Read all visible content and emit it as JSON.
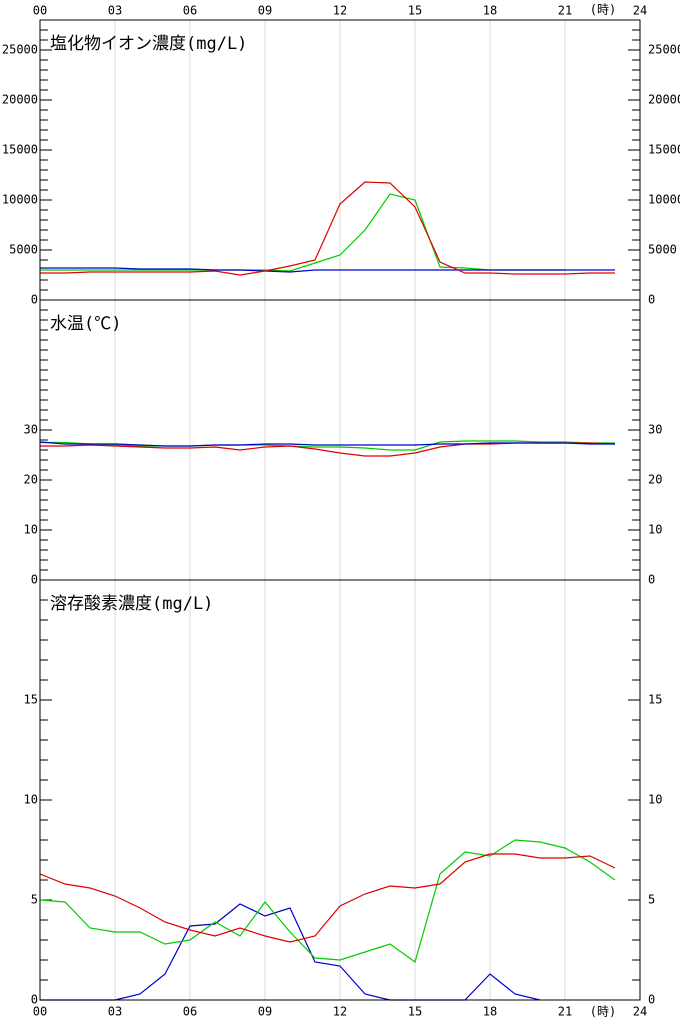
{
  "chart_data": [
    {
      "type": "line",
      "title": "塩化物イオン濃度(mg/L)",
      "xlabel": "(時)",
      "x_axis_position": "top",
      "x": [
        0,
        1,
        2,
        3,
        4,
        5,
        6,
        7,
        8,
        9,
        10,
        11,
        12,
        13,
        14,
        15,
        16,
        17,
        18,
        19,
        20,
        21,
        22,
        23
      ],
      "xlim": [
        0,
        24
      ],
      "xticks": [
        {
          "value": 0,
          "label": "00"
        },
        {
          "value": 3,
          "label": "03"
        },
        {
          "value": 6,
          "label": "06"
        },
        {
          "value": 9,
          "label": "09"
        },
        12,
        15,
        18,
        21,
        24
      ],
      "ylim": [
        0,
        28000
      ],
      "yticks": [
        0,
        5000,
        10000,
        15000,
        20000,
        25000
      ],
      "minor_yticks": [
        1000,
        2000,
        3000,
        4000,
        6000,
        7000,
        8000,
        9000,
        11000,
        12000,
        13000,
        14000,
        16000,
        17000,
        18000,
        19000,
        21000,
        22000,
        23000,
        24000,
        26000,
        27000
      ],
      "grid": true,
      "series": [
        {
          "color": "#00cc00",
          "values": [
            3000,
            3000,
            3000,
            3000,
            3000,
            3000,
            3000,
            3000,
            3000,
            3000,
            2900,
            3700,
            4500,
            7000,
            10600,
            10000,
            3300,
            3200,
            3000,
            3000,
            3000,
            3000,
            null,
            null
          ]
        },
        {
          "color": "#0000cc",
          "values": [
            3200,
            3200,
            3200,
            3200,
            3100,
            3100,
            3100,
            3000,
            3000,
            2900,
            2800,
            3000,
            3000,
            3000,
            3000,
            3000,
            3000,
            3000,
            3000,
            3000,
            3000,
            3000,
            3000,
            3000
          ]
        },
        {
          "color": "#e00000",
          "values": [
            2700,
            2700,
            2800,
            2800,
            2800,
            2800,
            2800,
            2900,
            2500,
            2900,
            3400,
            4000,
            9600,
            11800,
            11700,
            9300,
            3800,
            2700,
            2700,
            2600,
            2600,
            2600,
            2700,
            2700
          ]
        }
      ]
    },
    {
      "type": "line",
      "title": "水温(℃)",
      "x": [
        0,
        1,
        2,
        3,
        4,
        5,
        6,
        7,
        8,
        9,
        10,
        11,
        12,
        13,
        14,
        15,
        16,
        17,
        18,
        19,
        20,
        21,
        22,
        23
      ],
      "xlim": [
        0,
        24
      ],
      "xticks": [
        0,
        3,
        6,
        9,
        12,
        15,
        18,
        21,
        24
      ],
      "ylim": [
        0,
        56
      ],
      "yticks": [
        0,
        10,
        20,
        30
      ],
      "minor_yticks": [
        2,
        4,
        6,
        8,
        12,
        14,
        16,
        18,
        22,
        24,
        26,
        28,
        32,
        34,
        36,
        38,
        40,
        42,
        44,
        46,
        48,
        50,
        52,
        54
      ],
      "grid": true,
      "series": [
        {
          "color": "#00cc00",
          "values": [
            27.5,
            27.5,
            27.2,
            27,
            26.8,
            26.8,
            26.8,
            27,
            27,
            27,
            26.8,
            26.6,
            26.6,
            26.4,
            26,
            26,
            27.6,
            27.8,
            27.8,
            27.8,
            27.6,
            27.6,
            27.4,
            27.4
          ]
        },
        {
          "color": "#e00000",
          "values": [
            26.8,
            26.8,
            27,
            26.8,
            26.6,
            26.4,
            26.4,
            26.6,
            26,
            26.6,
            26.8,
            26.2,
            25.4,
            24.8,
            24.8,
            25.4,
            26.6,
            27.2,
            27.2,
            27.4,
            27.4,
            27.4,
            27.4,
            27.2
          ]
        },
        {
          "color": "#0000cc",
          "values": [
            27.6,
            27.2,
            27.2,
            27.2,
            27,
            26.8,
            26.8,
            27,
            27,
            27.2,
            27.2,
            27,
            27,
            27,
            27,
            27,
            27.2,
            27.2,
            27.4,
            27.4,
            27.4,
            27.4,
            27.2,
            27.2
          ]
        }
      ]
    },
    {
      "type": "line",
      "title": "溶存酸素濃度(mg/L)",
      "xlabel": "(時)",
      "x_axis_position": "bottom",
      "x": [
        0,
        1,
        2,
        3,
        4,
        5,
        6,
        7,
        8,
        9,
        10,
        11,
        12,
        13,
        14,
        15,
        16,
        17,
        18,
        19,
        20,
        21,
        22,
        23
      ],
      "xlim": [
        0,
        24
      ],
      "xticks": [
        {
          "value": 0,
          "label": "00"
        },
        {
          "value": 3,
          "label": "03"
        },
        {
          "value": 6,
          "label": "06"
        },
        {
          "value": 9,
          "label": "09"
        },
        12,
        15,
        18,
        21,
        24
      ],
      "ylim": [
        0,
        21
      ],
      "yticks": [
        0,
        5,
        10,
        15
      ],
      "minor_yticks": [
        1,
        2,
        3,
        4,
        6,
        7,
        8,
        9,
        11,
        12,
        13,
        14,
        16,
        17,
        18,
        19,
        20
      ],
      "grid": true,
      "series": [
        {
          "color": "#0000cc",
          "values": [
            0,
            0,
            0,
            0,
            0.3,
            1.3,
            3.7,
            3.8,
            4.8,
            4.2,
            4.6,
            1.9,
            1.7,
            0.3,
            0,
            0,
            0,
            0,
            1.3,
            0.3,
            0,
            null,
            null,
            null
          ]
        },
        {
          "color": "#00cc00",
          "values": [
            5.0,
            4.9,
            3.6,
            3.4,
            3.4,
            2.8,
            3.0,
            3.9,
            3.2,
            4.9,
            3.4,
            2.1,
            2.0,
            2.4,
            2.8,
            1.9,
            6.3,
            7.4,
            7.2,
            8.0,
            7.9,
            7.6,
            6.9,
            6.0
          ]
        },
        {
          "color": "#e00000",
          "values": [
            6.3,
            5.8,
            5.6,
            5.2,
            4.6,
            3.9,
            3.5,
            3.2,
            3.6,
            3.2,
            2.9,
            3.2,
            4.7,
            5.3,
            5.7,
            5.6,
            5.8,
            6.9,
            7.3,
            7.3,
            7.1,
            7.1,
            7.2,
            6.6
          ]
        }
      ]
    }
  ]
}
